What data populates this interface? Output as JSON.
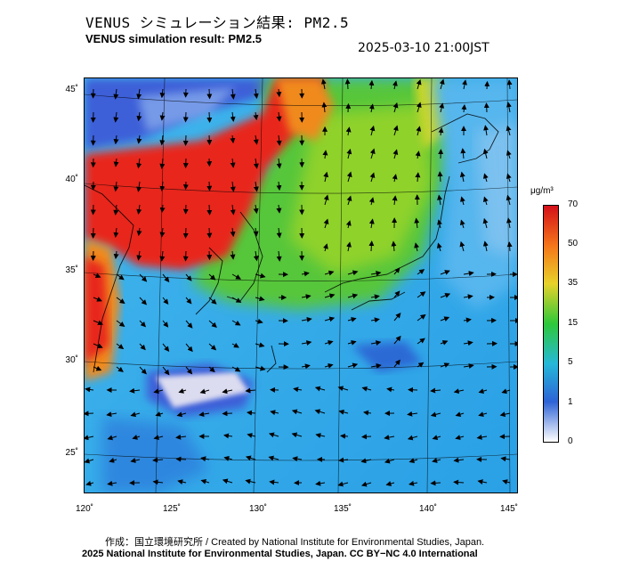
{
  "header": {
    "title_ja": "VENUS シミュレーション結果: PM2.5",
    "title_en": "VENUS simulation result: PM2.5",
    "timestamp": "2025-03-10 21:00JST"
  },
  "map": {
    "lat_labels": [
      "45˚",
      "40˚",
      "35˚",
      "30˚",
      "25˚"
    ],
    "lon_labels": [
      "120˚",
      "125˚",
      "130˚",
      "135˚",
      "140˚",
      "145˚"
    ],
    "lat_range": [
      23,
      46
    ],
    "lon_range": [
      120,
      145
    ],
    "field": "PM2.5 concentration with wind vectors",
    "colors": {
      "very_high": "#e8261c",
      "high": "#f08a1a",
      "mid": "#8fd22a",
      "low": "#2ec07a",
      "clean": "#3fa9e6",
      "very_clean": "#3c5fd8",
      "near_zero": "#dcdcf0"
    }
  },
  "colorbar": {
    "unit": "μg/m³",
    "ticks": [
      "70",
      "50",
      "35",
      "15",
      "5",
      "1",
      "0"
    ]
  },
  "footer": {
    "credit": "作成：国立環境研究所 / Created by National Institute for Environmental Studies, Japan.",
    "license": "2025 National Institute for Environmental Studies, Japan. CC BY−NC 4.0 International"
  }
}
